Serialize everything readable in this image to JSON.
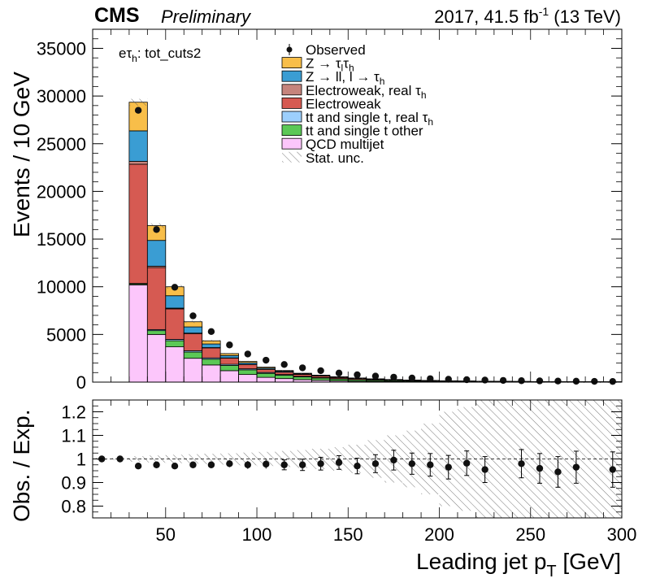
{
  "header": {
    "cms": "CMS",
    "preliminary": "Preliminary",
    "lumi_prefix": "2017, 41.5 fb",
    "lumi_exp": "-1",
    "lumi_suffix": " (13 TeV)"
  },
  "channel_label": {
    "main": "eτ",
    "sub": "h",
    "suffix": ": tot_cuts2"
  },
  "y_label_main": "Events / 10 GeV",
  "y_label_ratio": "Obs. / Exp.",
  "x_label": {
    "main": "Leading jet p",
    "sub": "T",
    "suffix": " [GeV]"
  },
  "colors": {
    "ztt": "#f8be49",
    "zll": "#3a9dd3",
    "ew_real": "#c6847c",
    "ew": "#d65a52",
    "ttbar_real": "#9ccffc",
    "ttbar_other": "#5bc856",
    "qcd": "#fcc6fb"
  },
  "legend": [
    {
      "type": "marker",
      "label": "Observed"
    },
    {
      "type": "box",
      "color_key": "ztt",
      "label": "Z → τ",
      "sub": "l",
      "tail": "τ",
      "tail_sub": "h"
    },
    {
      "type": "box",
      "color_key": "zll",
      "label": "Z → ll, l → τ",
      "sub": "h"
    },
    {
      "type": "box",
      "color_key": "ew_real",
      "label": "Electroweak, real  τ",
      "sub": "h"
    },
    {
      "type": "box",
      "color_key": "ew",
      "label": "Electroweak"
    },
    {
      "type": "box",
      "color_key": "ttbar_real",
      "label": "tt and single t, real  τ",
      "sub": "h"
    },
    {
      "type": "box",
      "color_key": "ttbar_other",
      "label": "tt and single t other"
    },
    {
      "type": "box",
      "color_key": "qcd",
      "label": "QCD multijet"
    },
    {
      "type": "hatch",
      "label": "Stat. unc."
    }
  ],
  "chart_data": [
    {
      "type": "bar",
      "title": "",
      "xlabel": "Leading jet p_T [GeV]",
      "ylabel": "Events / 10 GeV",
      "xlim": [
        10,
        300
      ],
      "ylim": [
        0,
        37000
      ],
      "x_ticks": [
        50,
        100,
        150,
        200,
        250,
        300
      ],
      "y_ticks": [
        0,
        5000,
        10000,
        15000,
        20000,
        25000,
        30000,
        35000
      ],
      "bin_edges": [
        30,
        40,
        50,
        60,
        70,
        80,
        90,
        100,
        110,
        120,
        130,
        140,
        150,
        160,
        170,
        180,
        190,
        200,
        210,
        220,
        230,
        240,
        250,
        260,
        270,
        280,
        290,
        300
      ],
      "stack_order": [
        "qcd",
        "ttbar_other",
        "ttbar_real",
        "ew",
        "ew_real",
        "zll",
        "ztt"
      ],
      "series": [
        {
          "name": "QCD multijet",
          "key": "qcd",
          "values": [
            10200,
            5000,
            3700,
            2500,
            1800,
            1200,
            800,
            500,
            370,
            260,
            190,
            130,
            95,
            70,
            55,
            40,
            32,
            25,
            20,
            15,
            12,
            10,
            8,
            6,
            5,
            4,
            3
          ]
        },
        {
          "name": "tt and single t other",
          "key": "ttbar_other",
          "values": [
            100,
            400,
            640,
            650,
            610,
            550,
            490,
            420,
            350,
            290,
            240,
            190,
            150,
            120,
            95,
            75,
            60,
            48,
            40,
            32,
            26,
            22,
            18,
            15,
            12,
            10,
            8
          ]
        },
        {
          "name": "tt and single t, real τ_h",
          "key": "ttbar_real",
          "values": [
            50,
            110,
            140,
            140,
            130,
            120,
            105,
            90,
            75,
            60,
            50,
            40,
            32,
            26,
            21,
            17,
            13,
            10,
            8,
            6,
            5,
            4,
            3,
            3,
            2,
            2,
            2
          ]
        },
        {
          "name": "Electroweak",
          "key": "ew",
          "values": [
            12500,
            6500,
            3200,
            1800,
            1050,
            650,
            450,
            330,
            250,
            200,
            160,
            130,
            105,
            85,
            70,
            58,
            48,
            40,
            34,
            29,
            25,
            22,
            19,
            17,
            15,
            13,
            11
          ]
        },
        {
          "name": "Electroweak, real τ_h",
          "key": "ew_real",
          "values": [
            300,
            150,
            80,
            50,
            30,
            20,
            15,
            10,
            8,
            6,
            5,
            4,
            3,
            3,
            2,
            2,
            2,
            1,
            1,
            1,
            1,
            1,
            1,
            1,
            1,
            1,
            1
          ]
        },
        {
          "name": "Z → ll, l → τ_h",
          "key": "zll",
          "values": [
            3200,
            2700,
            1300,
            650,
            380,
            250,
            170,
            120,
            90,
            65,
            50,
            38,
            30,
            24,
            19,
            15,
            12,
            10,
            8,
            7,
            6,
            5,
            4,
            4,
            3,
            3,
            2
          ]
        },
        {
          "name": "Z → τ_l τ_h",
          "key": "ztt",
          "values": [
            3000,
            1550,
            940,
            540,
            330,
            200,
            140,
            100,
            70,
            50,
            38,
            30,
            22,
            18,
            14,
            11,
            9,
            7,
            6,
            5,
            4,
            3,
            3,
            2,
            2,
            2,
            1
          ]
        }
      ],
      "observed": {
        "x": [
          35,
          45,
          55,
          65,
          75,
          85,
          95,
          105,
          115,
          125,
          135,
          145,
          155,
          165,
          175,
          185,
          195,
          205,
          215,
          225,
          235,
          245,
          255,
          265,
          275,
          285,
          295
        ],
        "values": [
          28500,
          16000,
          9950,
          6950,
          5300,
          3900,
          2950,
          2300,
          1850,
          1500,
          1200,
          950,
          770,
          630,
          520,
          430,
          360,
          300,
          255,
          215,
          180,
          150,
          130,
          110,
          95,
          80,
          70
        ],
        "errors": [
          170,
          126,
          100,
          83,
          73,
          62,
          54,
          48,
          43,
          39,
          35,
          31,
          28,
          25,
          23,
          21,
          19,
          17,
          16,
          15,
          13,
          12,
          11,
          10,
          10,
          9,
          8
        ]
      },
      "stat_unc_fraction": [
        0.012,
        0.015,
        0.018,
        0.02,
        0.022,
        0.024,
        0.027,
        0.03,
        0.034,
        0.038,
        0.043,
        0.05,
        0.055,
        0.06,
        0.066,
        0.072,
        0.078,
        0.086,
        0.094,
        0.1,
        0.11,
        0.12,
        0.13,
        0.14,
        0.15,
        0.16,
        0.17
      ]
    },
    {
      "type": "scatter",
      "title": "",
      "xlabel": "Leading jet p_T [GeV]",
      "ylabel": "Obs. / Exp.",
      "xlim": [
        10,
        300
      ],
      "ylim": [
        0.75,
        1.25
      ],
      "x_ticks": [
        50,
        100,
        150,
        200,
        250,
        300
      ],
      "y_ticks": [
        0.8,
        0.9,
        1,
        1.1,
        1.2
      ],
      "reference_line": 1,
      "x": [
        15,
        25,
        35,
        45,
        55,
        65,
        75,
        85,
        95,
        105,
        115,
        125,
        135,
        145,
        155,
        165,
        175,
        185,
        195,
        205,
        215,
        225,
        245,
        255,
        265,
        275,
        295
      ],
      "values": [
        1.0,
        1.0,
        0.97,
        0.975,
        0.97,
        0.975,
        0.975,
        0.98,
        0.975,
        0.978,
        0.975,
        0.975,
        0.98,
        0.985,
        0.97,
        0.98,
        0.995,
        0.98,
        0.975,
        0.965,
        0.982,
        0.955,
        0.98,
        0.96,
        0.945,
        0.965,
        0.955
      ],
      "errors": [
        0.004,
        0.005,
        0.007,
        0.008,
        0.01,
        0.011,
        0.013,
        0.015,
        0.017,
        0.019,
        0.021,
        0.024,
        0.027,
        0.029,
        0.033,
        0.038,
        0.042,
        0.045,
        0.048,
        0.05,
        0.052,
        0.055,
        0.06,
        0.063,
        0.065,
        0.068,
        0.075
      ],
      "band_x_edges": [
        10,
        20,
        30,
        40,
        50,
        60,
        70,
        80,
        90,
        100,
        110,
        120,
        130,
        140,
        150,
        160,
        170,
        180,
        190,
        200,
        210,
        220,
        230,
        240,
        250,
        260,
        270,
        280,
        290,
        300
      ],
      "band_half_width": [
        0.005,
        0.005,
        0.012,
        0.015,
        0.018,
        0.02,
        0.022,
        0.024,
        0.027,
        0.03,
        0.034,
        0.038,
        0.043,
        0.05,
        0.06,
        0.08,
        0.1,
        0.12,
        0.15,
        0.2,
        0.22,
        0.25,
        0.28,
        0.3,
        0.32,
        0.34,
        0.36,
        0.38,
        0.4
      ]
    }
  ]
}
